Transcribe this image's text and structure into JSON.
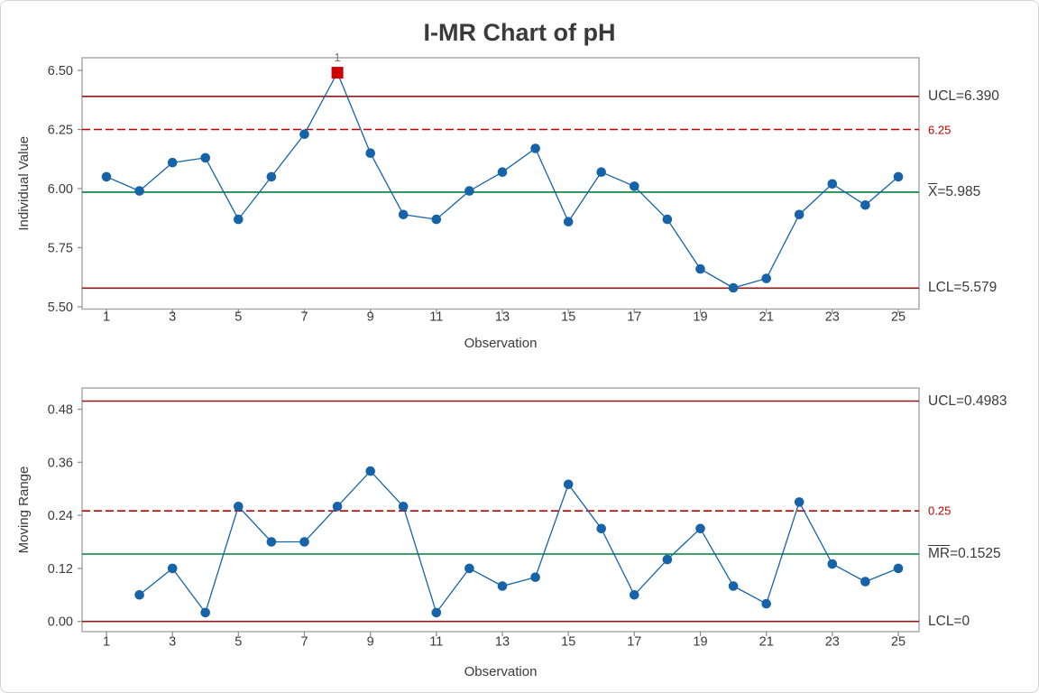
{
  "title": "I-MR Chart of pH",
  "colors": {
    "data_blue": "#1663a8",
    "center_line_green": "#00803c",
    "control_limit_maroon": "#8e1b1b",
    "reference_red": "#c00000",
    "out_of_control_red": "#cc0000",
    "plot_border_gray": "#a6a6a6",
    "tick_gray": "#8c8c8c",
    "text_dark": "#3a3a3a",
    "flag_gray": "#737373"
  },
  "chart_data": [
    {
      "type": "line",
      "name": "individuals-chart",
      "ylabel": "Individual Value",
      "xlabel": "Observation",
      "x": [
        1,
        2,
        3,
        4,
        5,
        6,
        7,
        8,
        9,
        10,
        11,
        12,
        13,
        14,
        15,
        16,
        17,
        18,
        19,
        20,
        21,
        22,
        23,
        24,
        25
      ],
      "values": [
        6.05,
        5.99,
        6.11,
        6.13,
        5.87,
        6.05,
        6.23,
        6.49,
        6.15,
        5.89,
        5.87,
        5.99,
        6.07,
        6.17,
        5.86,
        6.07,
        6.01,
        5.87,
        5.66,
        5.58,
        5.62,
        5.89,
        6.02,
        5.93,
        6.05
      ],
      "ylim": [
        5.5,
        6.5
      ],
      "yticks": [
        {
          "label": "6.50",
          "value": 6.5
        },
        {
          "label": "6.25",
          "value": 6.25
        },
        {
          "label": "6.00",
          "value": 6.0
        },
        {
          "label": "5.75",
          "value": 5.75
        },
        {
          "label": "5.50",
          "value": 5.5
        }
      ],
      "xticks": [
        1,
        3,
        5,
        7,
        9,
        11,
        13,
        15,
        17,
        19,
        21,
        23,
        25
      ],
      "ucl": {
        "label": "UCL=6.390",
        "value": 6.39
      },
      "center_line": {
        "label_bar": "X",
        "label_rest": "=5.985",
        "value": 5.985
      },
      "lcl": {
        "label": "LCL=5.579",
        "value": 5.579
      },
      "reference_line": {
        "label": "6.25",
        "value": 6.25,
        "style": "dashed"
      },
      "out_of_control": [
        {
          "x": 8,
          "value": 6.49,
          "flag": "1"
        }
      ],
      "grid": "off",
      "legend": "none"
    },
    {
      "type": "line",
      "name": "moving-range-chart",
      "ylabel": "Moving Range",
      "xlabel": "Observation",
      "x": [
        1,
        2,
        3,
        4,
        5,
        6,
        7,
        8,
        9,
        10,
        11,
        12,
        13,
        14,
        15,
        16,
        17,
        18,
        19,
        20,
        21,
        22,
        23,
        24,
        25
      ],
      "values": [
        null,
        0.06,
        0.12,
        0.02,
        0.26,
        0.18,
        0.18,
        0.26,
        0.34,
        0.26,
        0.02,
        0.12,
        0.08,
        0.1,
        0.31,
        0.21,
        0.06,
        0.14,
        0.21,
        0.08,
        0.04,
        0.27,
        0.13,
        0.09,
        0.12
      ],
      "ylim": [
        0.0,
        0.48
      ],
      "yticks": [
        {
          "label": "0.48",
          "value": 0.48
        },
        {
          "label": "0.36",
          "value": 0.36
        },
        {
          "label": "0.24",
          "value": 0.24
        },
        {
          "label": "0.12",
          "value": 0.12
        },
        {
          "label": "0.00",
          "value": 0.0
        }
      ],
      "xticks": [
        1,
        3,
        5,
        7,
        9,
        11,
        13,
        15,
        17,
        19,
        21,
        23,
        25
      ],
      "ucl": {
        "label": "UCL=0.4983",
        "value": 0.4983
      },
      "center_line": {
        "label_bar": "MR",
        "label_rest": "=0.1525",
        "value": 0.1525
      },
      "lcl": {
        "label": "LCL=0",
        "value": 0
      },
      "reference_line": {
        "label": "0.25",
        "value": 0.25,
        "style": "dashed"
      },
      "out_of_control": [],
      "grid": "off",
      "legend": "none"
    }
  ]
}
